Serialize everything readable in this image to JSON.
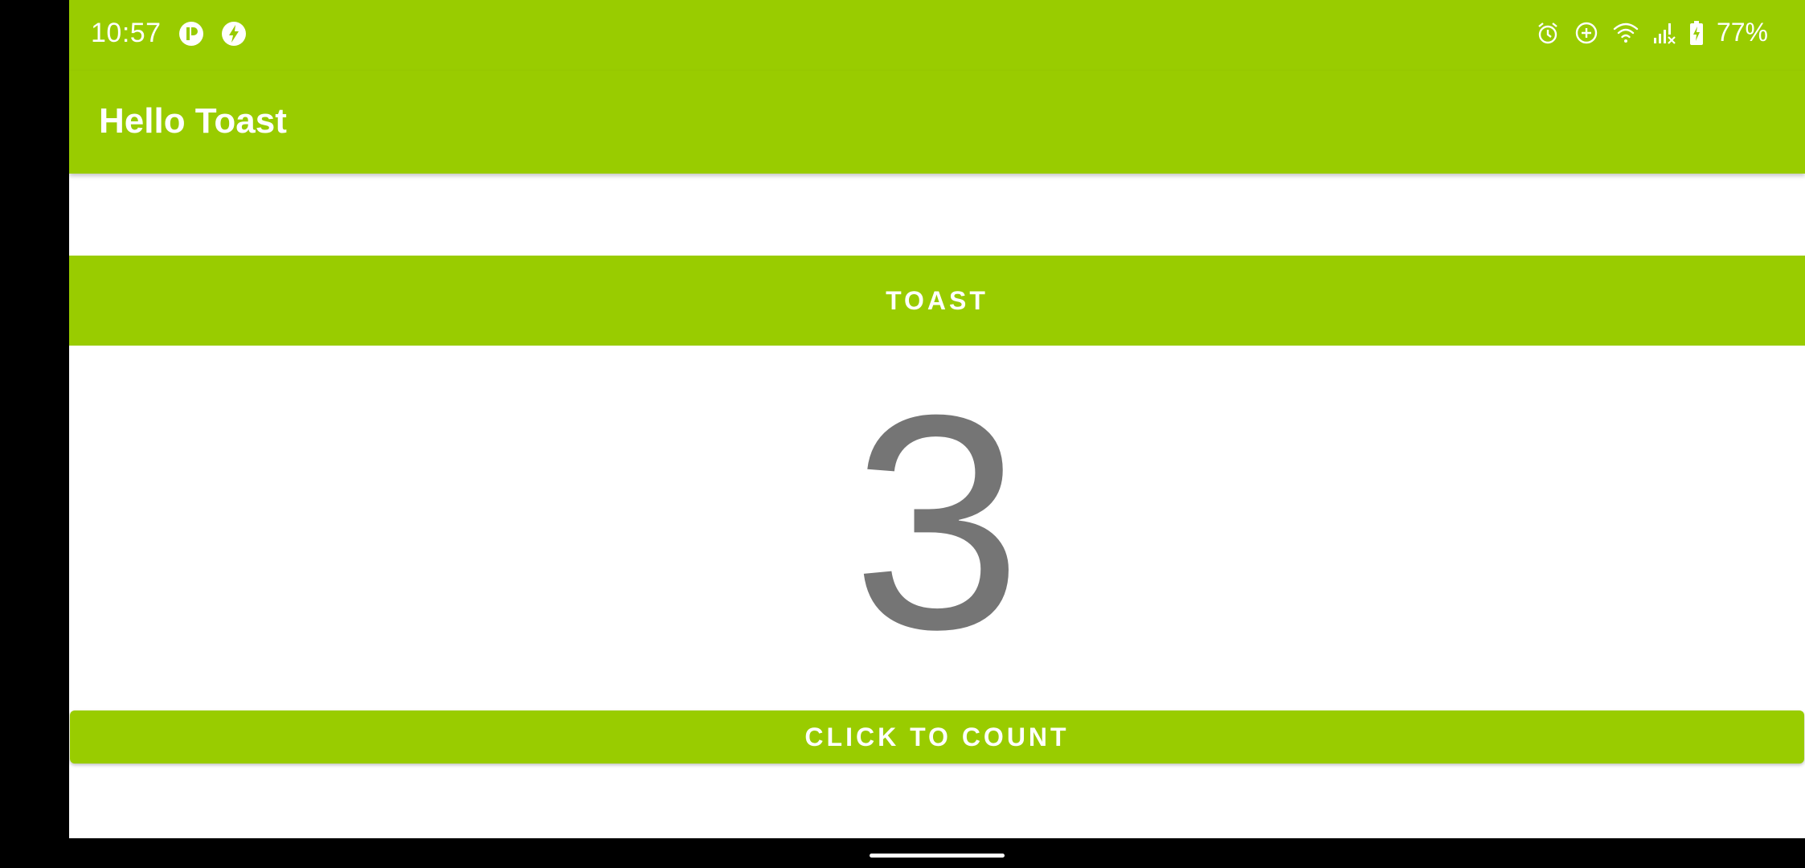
{
  "status_bar": {
    "time": "10:57",
    "battery_percent": "77%",
    "left_icons": [
      "p-icon",
      "flash-icon"
    ],
    "right_icons": [
      "alarm-icon",
      "data-saver-icon",
      "wifi-icon",
      "signal-icon",
      "battery-icon"
    ]
  },
  "app_bar": {
    "title": "Hello Toast"
  },
  "main": {
    "toast_button_label": "TOAST",
    "count": "3",
    "count_button_label": "CLICK TO COUNT"
  },
  "colors": {
    "accent": "#99cc00",
    "count_text": "#757575",
    "background": "#ffffff"
  }
}
